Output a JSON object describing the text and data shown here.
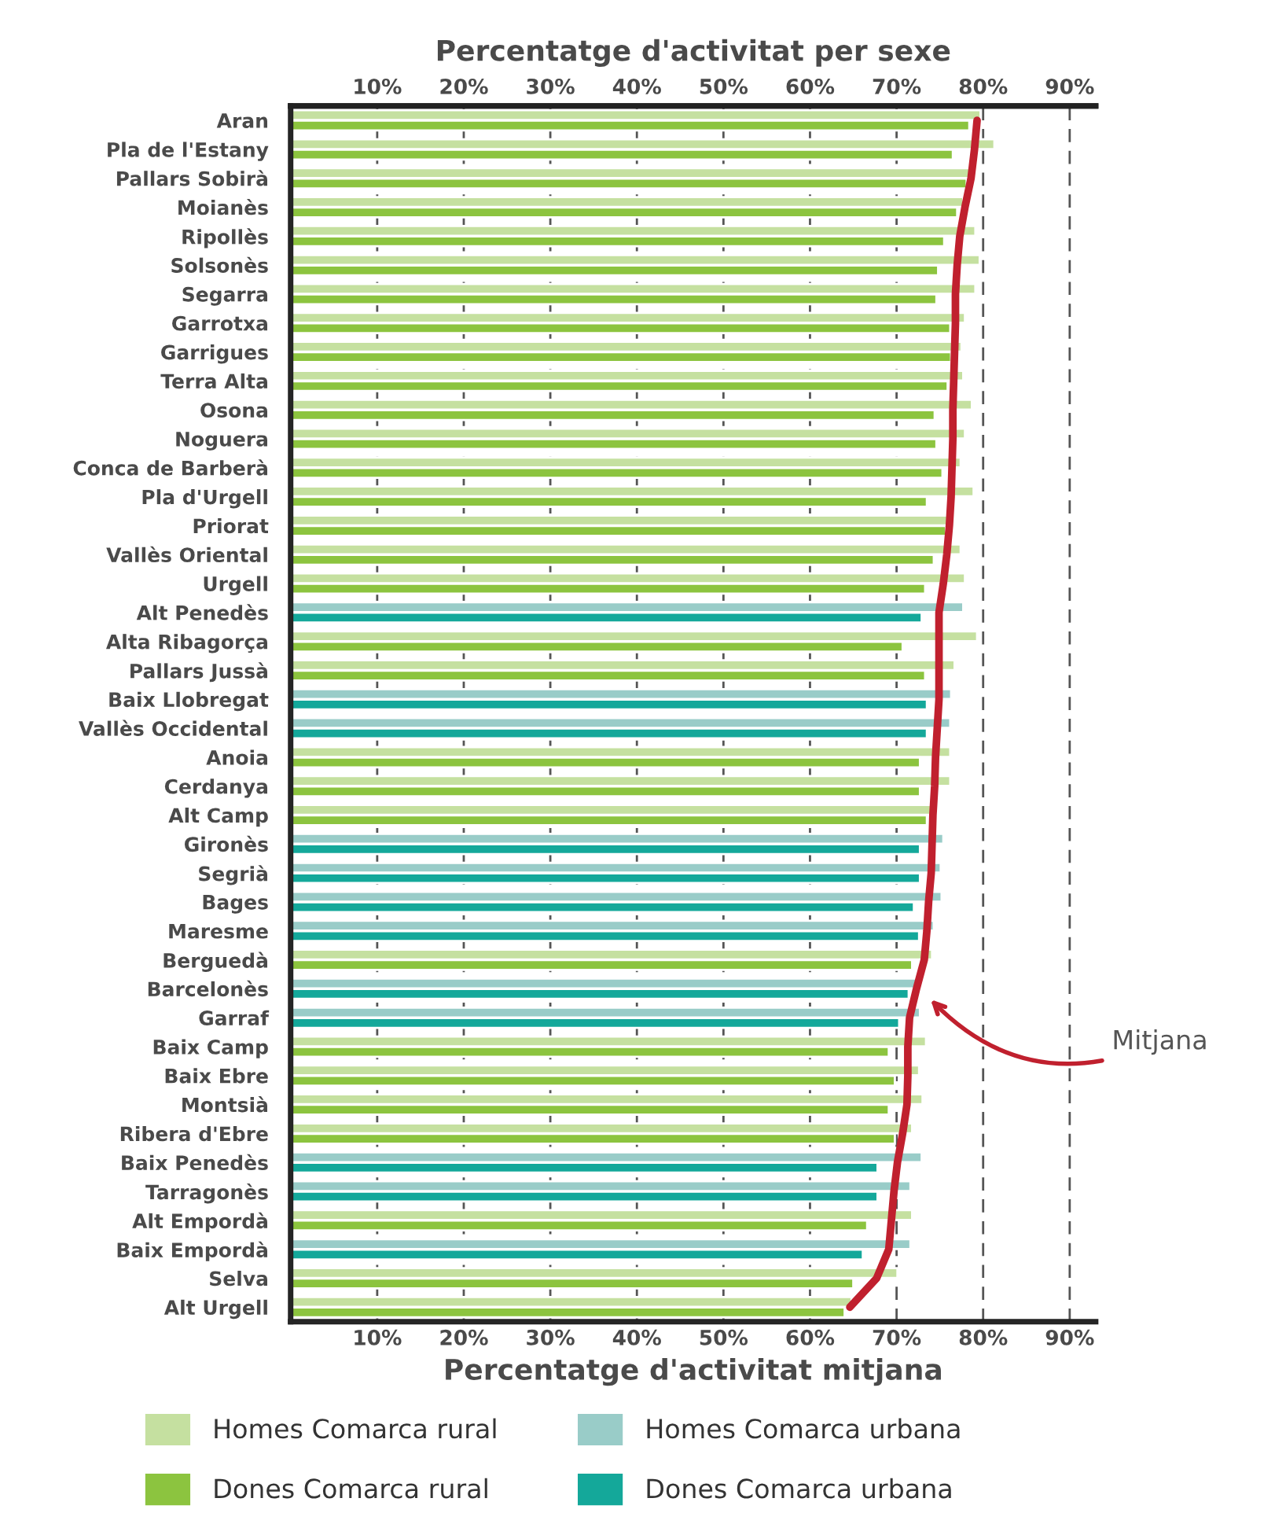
{
  "chart_data": {
    "type": "bar",
    "orientation": "horizontal",
    "xlabel": "Percentatge d'activitat mitjana",
    "x2label": "Percentatge d'activitat per sexe",
    "categories": [
      "Aran",
      "Pla de l'Estany",
      "Pallars Sobirà",
      "Moianès",
      "Ripollès",
      "Solsonès",
      "Segarra",
      "Garrotxa",
      "Garrigues",
      "Terra Alta",
      "Osona",
      "Noguera",
      "Conca de Barberà",
      "Pla d'Urgell",
      "Priorat",
      "Vallès Oriental",
      "Urgell",
      "Alt Penedès",
      "Alta Ribagorça",
      "Pallars Jussà",
      "Baix Llobregat",
      "Vallès Occidental",
      "Anoia",
      "Cerdanya",
      "Alt Camp",
      "Gironès",
      "Segrià",
      "Bages",
      "Maresme",
      "Berguedà",
      "Barcelonès",
      "Garraf",
      "Baix Camp",
      "Baix Ebre",
      "Montsià",
      "Ribera d'Ebre",
      "Baix Penedès",
      "Tarragonès",
      "Alt Empordà",
      "Baix Empordà",
      "Selva",
      "Alt Urgell"
    ],
    "series": [
      {
        "name": "Homes Comarca rural",
        "color": "#c5e0a0",
        "values": [
          79.7,
          81.3,
          78.5,
          77.7,
          79.1,
          79.6,
          79.1,
          77.9,
          77.5,
          77.7,
          78.7,
          77.9,
          77.4,
          78.9,
          76.0,
          77.4,
          77.9,
          null,
          79.3,
          76.7,
          null,
          null,
          76.2,
          76.2,
          74.2,
          null,
          null,
          null,
          null,
          74.1,
          null,
          null,
          73.4,
          72.6,
          73.0,
          71.8,
          null,
          null,
          71.8,
          null,
          70.1,
          64.8
        ]
      },
      {
        "name": "Dones Comarca rural",
        "color": "#8cc43f",
        "values": [
          78.4,
          76.5,
          78.1,
          77.0,
          75.5,
          74.8,
          74.6,
          76.2,
          76.3,
          75.9,
          74.4,
          74.6,
          75.3,
          73.5,
          75.7,
          74.3,
          73.3,
          null,
          70.7,
          73.3,
          null,
          null,
          72.7,
          72.7,
          73.5,
          null,
          null,
          null,
          null,
          71.8,
          null,
          null,
          69.1,
          69.8,
          69.1,
          69.8,
          null,
          null,
          66.6,
          null,
          65.0,
          64.0
        ]
      },
      {
        "name": "Homes Comarca urbana",
        "color": "#99ccc8",
        "values": [
          null,
          null,
          null,
          null,
          null,
          null,
          null,
          null,
          null,
          null,
          null,
          null,
          null,
          null,
          null,
          null,
          null,
          77.7,
          null,
          null,
          76.3,
          76.2,
          null,
          null,
          null,
          75.4,
          75.1,
          75.2,
          74.3,
          null,
          72.5,
          72.7,
          null,
          null,
          null,
          null,
          72.9,
          71.6,
          null,
          71.6,
          null,
          null
        ]
      },
      {
        "name": "Dones Comarca urbana",
        "color": "#14a89a",
        "values": [
          null,
          null,
          null,
          null,
          null,
          null,
          null,
          null,
          null,
          null,
          null,
          null,
          null,
          null,
          null,
          null,
          null,
          72.9,
          null,
          null,
          73.5,
          73.5,
          null,
          null,
          null,
          72.7,
          72.7,
          72.0,
          72.6,
          null,
          71.4,
          70.3,
          null,
          null,
          null,
          null,
          67.8,
          67.8,
          null,
          66.1,
          null,
          null
        ]
      },
      {
        "type": "line",
        "color": "#c0202e",
        "values": [
          79.3,
          79.0,
          78.6,
          77.9,
          77.3,
          77.0,
          76.8,
          76.8,
          76.7,
          76.6,
          76.5,
          76.5,
          76.4,
          76.3,
          76.1,
          75.8,
          75.4,
          74.9,
          74.9,
          74.9,
          74.9,
          74.7,
          74.5,
          74.4,
          74.2,
          74.1,
          74.0,
          73.7,
          73.5,
          73.2,
          72.3,
          71.5,
          71.3,
          71.3,
          71.2,
          70.7,
          70.1,
          69.7,
          69.4,
          69.1,
          67.7,
          64.6
        ]
      }
    ],
    "xlim": [
      0,
      93
    ],
    "xticks": [
      {
        "value": 10,
        "label": "10%"
      },
      {
        "value": 20,
        "label": "20%"
      },
      {
        "value": 30,
        "label": "30%"
      },
      {
        "value": 40,
        "label": "40%"
      },
      {
        "value": 50,
        "label": "50%"
      },
      {
        "value": 60,
        "label": "60%"
      },
      {
        "value": 70,
        "label": "70%"
      },
      {
        "value": 80,
        "label": "80%"
      },
      {
        "value": 90,
        "label": "90%"
      }
    ],
    "x2lim": [
      0,
      93
    ],
    "x2ticks": [
      {
        "value": 10,
        "label": "10%"
      },
      {
        "value": 20,
        "label": "20%"
      },
      {
        "value": 30,
        "label": "30%"
      },
      {
        "value": 40,
        "label": "40%"
      },
      {
        "value": 50,
        "label": "50%"
      },
      {
        "value": 60,
        "label": "60%"
      },
      {
        "value": 70,
        "label": "70%"
      },
      {
        "value": 80,
        "label": "80%"
      },
      {
        "value": 90,
        "label": "90%"
      }
    ],
    "annotations": [
      "Mitjana"
    ],
    "grid": "x",
    "legend": "bottom",
    "line_style": "solid",
    "marker": "none"
  }
}
